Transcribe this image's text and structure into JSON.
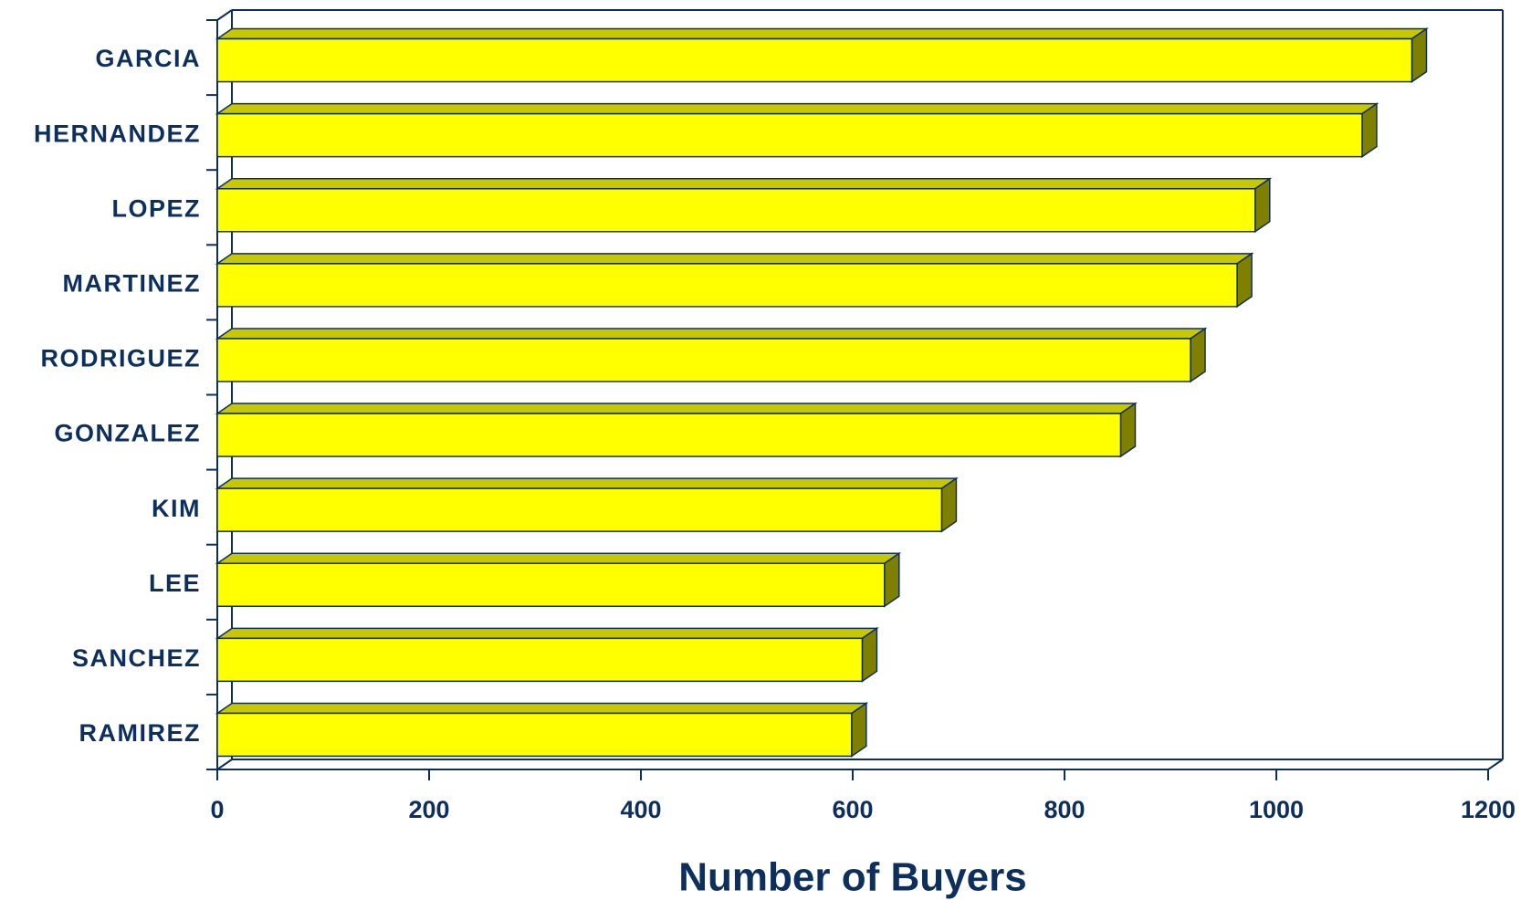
{
  "chart_data": {
    "type": "bar",
    "orientation": "horizontal",
    "xlabel": "Number of Buyers",
    "categories": [
      "GARCIA",
      "HERNANDEZ",
      "LOPEZ",
      "MARTINEZ",
      "RODRIGUEZ",
      "GONZALEZ",
      "KIM",
      "LEE",
      "SANCHEZ",
      "RAMIREZ"
    ],
    "values": [
      1128,
      1081,
      980,
      963,
      919,
      853,
      684,
      630,
      609,
      599
    ],
    "color": "#ffff00",
    "top_color": "#c8c800",
    "side_color": "#808000",
    "xlim": [
      0,
      1200
    ],
    "xticks": [
      0,
      200,
      400,
      600,
      800,
      1000,
      1200
    ]
  }
}
